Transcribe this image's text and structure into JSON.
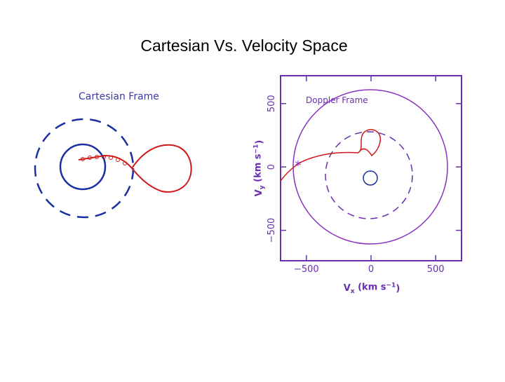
{
  "title": "Cartesian Vs. Velocity Space",
  "left_panel": {
    "label": "Cartesian Frame"
  },
  "right_panel": {
    "label": "Doppler Frame",
    "x_axis_label": [
      "V",
      "x",
      " (km s",
      "−1",
      ")"
    ],
    "y_axis_label": [
      "V",
      "y",
      " (km s",
      "−1",
      ")"
    ],
    "xlim": [
      -700,
      700
    ],
    "ylim": [
      -740,
      720
    ],
    "xticks": [
      {
        "value": -500,
        "label": "−500"
      },
      0,
      500
    ],
    "yticks": [
      {
        "value": -500,
        "label": "−500"
      },
      0,
      500
    ]
  }
}
